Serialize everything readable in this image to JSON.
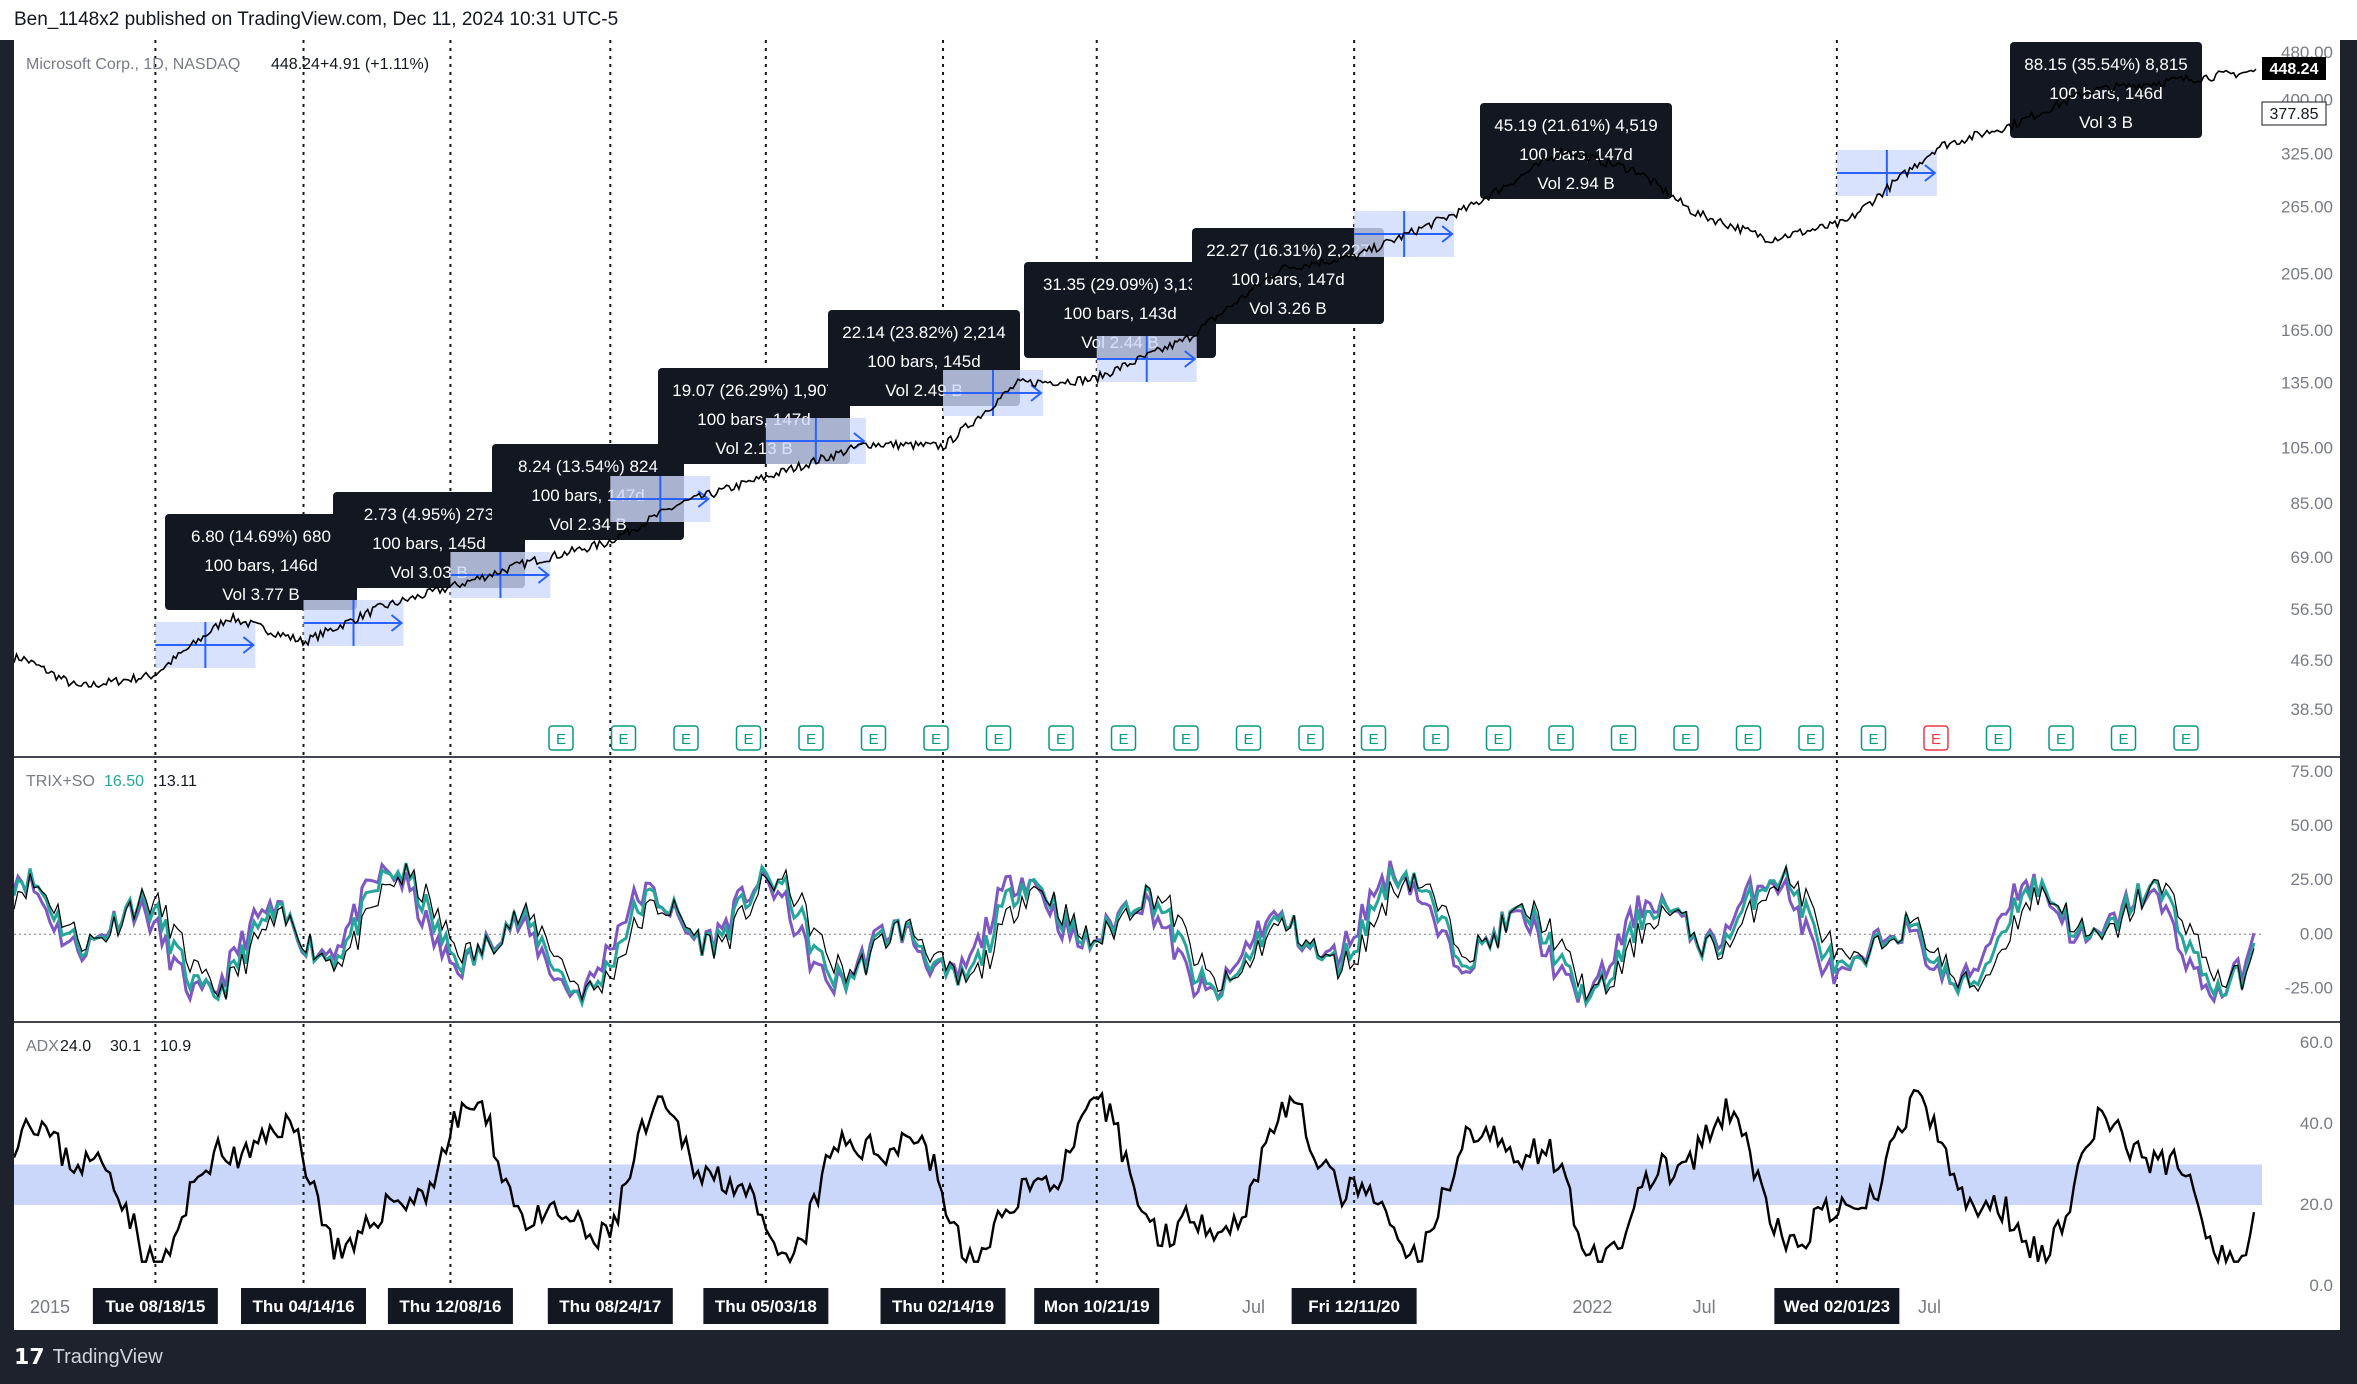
{
  "header": {
    "published": "Ben_1148x2 published on TradingView.com, Dec 11, 2024 10:31 UTC-5"
  },
  "footer": {
    "brand": "TradingView",
    "logo_icon": "tradingview-logo-icon"
  },
  "legend": {
    "symbol": "Microsoft Corp., 1D, NASDAQ",
    "last": "448.24",
    "change": "+4.91 (+1.11%)"
  },
  "price_labels": {
    "last": "448.24",
    "ref": "377.85"
  },
  "earnings_marker": "E",
  "chart_data": [
    {
      "type": "line",
      "panel": "price",
      "scale": "log",
      "y_ticks": [
        "480.00",
        "400.00",
        "325.00",
        "265.00",
        "205.00",
        "165.00",
        "135.00",
        "105.00",
        "85.00",
        "69.00",
        "56.50",
        "46.50",
        "38.50"
      ],
      "series": [
        {
          "name": "Microsoft Corp., 1D, NASDAQ",
          "x": [
            "2015-01",
            "2015-04",
            "2015-08",
            "2015-12",
            "2016-04",
            "2016-08",
            "2016-12",
            "2017-04",
            "2017-08",
            "2017-12",
            "2018-05",
            "2018-10",
            "2019-02",
            "2019-06",
            "2019-10",
            "2020-03",
            "2020-08",
            "2020-12",
            "2021-06",
            "2021-11",
            "2022-03",
            "2022-06",
            "2022-10",
            "2023-02",
            "2023-07",
            "2023-11",
            "2024-03",
            "2024-07",
            "2024-12"
          ],
          "values": [
            47,
            42,
            44,
            55,
            50,
            57,
            62,
            68,
            73,
            85,
            95,
            107,
            106,
            135,
            137,
            160,
            210,
            220,
            265,
            330,
            305,
            260,
            235,
            250,
            335,
            365,
            415,
            430,
            448
          ]
        }
      ],
      "measurements": [
        {
          "text": "6.80 (14.69%) 680",
          "bars": "100 bars, 146d",
          "vol": "Vol 3.77 B"
        },
        {
          "text": "2.73 (4.95%) 273",
          "bars": "100 bars, 145d",
          "vol": "Vol 3.03 B"
        },
        {
          "text": "8.24 (13.54%) 824",
          "bars": "100 bars, 147d",
          "vol": "Vol 2.34 B"
        },
        {
          "text": "19.07 (26.29%) 1,907",
          "bars": "100 bars, 147d",
          "vol": "Vol 2.13 B"
        },
        {
          "text": "22.14 (23.82%) 2,214",
          "bars": "100 bars, 145d",
          "vol": "Vol 2.49 B"
        },
        {
          "text": "31.35 (29.09%) 3,13",
          "bars": "100 bars, 143d",
          "vol": "Vol 2.44 B"
        },
        {
          "text": "22.27 (16.31%) 2,227",
          "bars": "100 bars, 147d",
          "vol": "Vol 3.26 B"
        },
        {
          "text": "45.19 (21.61%) 4,519",
          "bars": "100 bars, 147d",
          "vol": "Vol 2.94 B"
        },
        {
          "text": "88.15 (35.54%) 8,815",
          "bars": "100 bars, 146d",
          "vol": "Vol 3 B"
        }
      ]
    },
    {
      "type": "line",
      "panel": "oscillator",
      "legend": "TRIX+SO",
      "values_shown": [
        "16.50",
        "13.11"
      ],
      "y_ticks": [
        "75.00",
        "50.00",
        "25.00",
        "0.00",
        "-25.00"
      ],
      "ylim": [
        -35,
        75
      ],
      "colors": {
        "fast": "#26a69a",
        "slow": "#7e57c2",
        "signal": "#000000"
      }
    },
    {
      "type": "line",
      "panel": "adx",
      "legend": "ADX",
      "values_shown": [
        "24.0",
        "30.1",
        "10.9"
      ],
      "y_ticks": [
        "60.0",
        "40.0",
        "20.0",
        "0.0"
      ],
      "ylim": [
        0,
        62
      ],
      "band": [
        20,
        30
      ]
    }
  ],
  "x_axis_labels": [
    "2015",
    "Jul",
    "2022",
    "Jul",
    "Jul"
  ],
  "date_markers": [
    "Tue 08/18/15",
    "Thu 04/14/16",
    "Thu 12/08/16",
    "Thu 08/24/17",
    "Thu 05/03/18",
    "Thu 02/14/19",
    "Mon 10/21/19",
    "Fri 12/11/20",
    "Wed 02/01/23"
  ]
}
